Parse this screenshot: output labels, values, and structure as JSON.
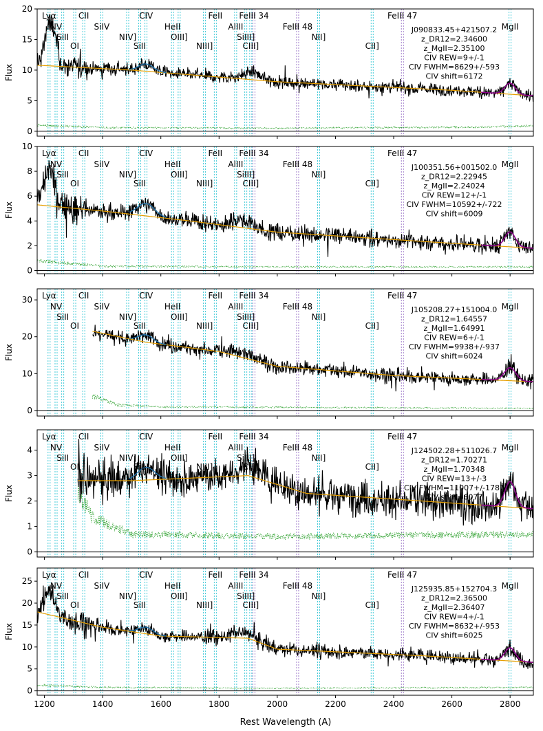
{
  "chart_data": {
    "type": "line",
    "xlabel": "Rest Wavelength (A)",
    "ylabel": "Flux",
    "xlim": [
      1175,
      2880
    ],
    "xticks": [
      1200,
      1400,
      1600,
      1800,
      2000,
      2200,
      2400,
      2600,
      2800
    ],
    "legend": "none",
    "grid": false,
    "colors": {
      "flux": "#000000",
      "error": "#2ca02c",
      "continuum": "#e69f00",
      "fit_total": "#8b008b",
      "fit_component": "#1f77b4",
      "line_marker": "#17becf",
      "feiii_marker": "#8a5fbf"
    },
    "line_markers": [
      {
        "label": "Lyα",
        "wave": 1216,
        "color": "cyan"
      },
      {
        "label": "NV",
        "wave": 1240,
        "color": "cyan"
      },
      {
        "label": "SiII",
        "wave": 1263,
        "color": "cyan"
      },
      {
        "label": "OI",
        "wave": 1304,
        "color": "cyan"
      },
      {
        "label": "CII",
        "wave": 1335,
        "color": "cyan"
      },
      {
        "label": "SiIV",
        "wave": 1397,
        "color": "cyan"
      },
      {
        "label": "NIV]",
        "wave": 1486,
        "color": "cyan"
      },
      {
        "label": "SiII",
        "wave": 1527,
        "color": "cyan"
      },
      {
        "label": "CIV",
        "wave": 1549,
        "color": "cyan"
      },
      {
        "label": "HeII",
        "wave": 1640,
        "color": "cyan"
      },
      {
        "label": "OIII]",
        "wave": 1663,
        "color": "cyan"
      },
      {
        "label": "NIII]",
        "wave": 1750,
        "color": "cyan"
      },
      {
        "label": "FeII",
        "wave": 1787,
        "color": "cyan"
      },
      {
        "label": "AlIII",
        "wave": 1857,
        "color": "cyan"
      },
      {
        "label": "SiIII]",
        "wave": 1892,
        "color": "cyan"
      },
      {
        "label": "CIII]",
        "wave": 1909,
        "color": "cyan"
      },
      {
        "label": "FeIII 34",
        "wave": 1920,
        "color": "purple"
      },
      {
        "label": "FeIII 48",
        "wave": 2070,
        "color": "purple"
      },
      {
        "label": "NII]",
        "wave": 2142,
        "color": "cyan"
      },
      {
        "label": "CII]",
        "wave": 2326,
        "color": "cyan"
      },
      {
        "label": "FeIII 47",
        "wave": 2430,
        "color": "purple"
      },
      {
        "label": "MgII",
        "wave": 2800,
        "color": "cyan"
      }
    ],
    "panels": [
      {
        "name": "J090833.45+421507.2",
        "ylim": [
          -0.8,
          20
        ],
        "yticks": [
          0,
          5,
          10,
          15,
          20
        ],
        "info": [
          "J090833.45+421507.2",
          "z_DR12=2.34600",
          "z_MgII=2.35100",
          "CIV REW=9+/-1",
          "CIV FWHM=8629+/-593",
          "CIV shift=6172"
        ],
        "blue_start": 1175,
        "continuum": {
          "anchors": [
            [
              1175,
              10.8
            ],
            [
              1500,
              10.0
            ],
            [
              2000,
              8.1
            ],
            [
              2600,
              6.7
            ],
            [
              2880,
              5.8
            ]
          ]
        },
        "emission": [
          [
            1216,
            7.0,
            15
          ],
          [
            1240,
            2.5,
            10
          ],
          [
            1549,
            1.2,
            25
          ],
          [
            1909,
            1.2,
            30
          ],
          [
            2800,
            1.8,
            18
          ]
        ],
        "noise": 0.5,
        "error_level": [
          [
            1175,
            1.0
          ],
          [
            1400,
            0.6
          ],
          [
            2000,
            0.5
          ],
          [
            2700,
            0.7
          ],
          [
            2880,
            0.9
          ]
        ]
      },
      {
        "name": "J100351.56+001502.0",
        "ylim": [
          -0.25,
          10
        ],
        "yticks": [
          0,
          2,
          4,
          6,
          8,
          10
        ],
        "info": [
          "J100351.56+001502.0",
          "z_DR12=2.22945",
          "z_MgII=2.24024",
          "CIV REW=12+/-1",
          "CIV FWHM=10592+/-722",
          "CIV shift=6009"
        ],
        "blue_start": 1175,
        "continuum": {
          "anchors": [
            [
              1175,
              5.3
            ],
            [
              1400,
              4.8
            ],
            [
              1700,
              4.0
            ],
            [
              2000,
              3.1
            ],
            [
              2600,
              2.2
            ],
            [
              2880,
              1.8
            ]
          ]
        },
        "emission": [
          [
            1216,
            3.0,
            18
          ],
          [
            1549,
            1.0,
            30
          ],
          [
            1880,
            0.6,
            35
          ],
          [
            2800,
            1.2,
            18
          ]
        ],
        "noise": 0.35,
        "error_level": [
          [
            1175,
            0.8
          ],
          [
            1400,
            0.35
          ],
          [
            2000,
            0.3
          ],
          [
            2880,
            0.3
          ]
        ]
      },
      {
        "name": "J105208.27+151004.0",
        "ylim": [
          -1.5,
          33
        ],
        "yticks": [
          0,
          10,
          20,
          30
        ],
        "info": [
          "J105208.27+151004.0",
          "z_DR12=1.64557",
          "z_MgII=1.64991",
          "CIV REW=6+/-1",
          "CIV FWHM=9938+/-937",
          "CIV shift=6024"
        ],
        "blue_start": 1365,
        "continuum": {
          "anchors": [
            [
              1365,
              21.5
            ],
            [
              1550,
              18.5
            ],
            [
              1800,
              16.0
            ],
            [
              2000,
              12.0
            ],
            [
              2400,
              9.5
            ],
            [
              2880,
              7.8
            ]
          ]
        },
        "emission": [
          [
            1549,
            2.0,
            25
          ],
          [
            1880,
            1.5,
            35
          ],
          [
            2800,
            3.5,
            20
          ]
        ],
        "noise": 1.0,
        "error_level": [
          [
            1365,
            4.0
          ],
          [
            1450,
            1.5
          ],
          [
            1600,
            1.0
          ],
          [
            2880,
            0.6
          ]
        ]
      },
      {
        "name": "J124502.28+511026.7",
        "ylim": [
          -0.2,
          4.8
        ],
        "yticks": [
          0,
          1,
          2,
          3,
          4
        ],
        "info": [
          "J124502.28+511026.7",
          "z_DR12=1.70271",
          "z_MgII=1.70348",
          "CIV REW=13+/-3",
          "CIV FWHM=11007+/-1787",
          "CIV shift=6077"
        ],
        "blue_start": 1315,
        "continuum": {
          "anchors": [
            [
              1315,
              2.8
            ],
            [
              1500,
              2.8
            ],
            [
              1900,
              3.0
            ],
            [
              2100,
              2.3
            ],
            [
              2500,
              2.0
            ],
            [
              2880,
              1.7
            ]
          ]
        },
        "emission": [
          [
            1549,
            0.5,
            30
          ],
          [
            1900,
            0.4,
            40
          ],
          [
            2800,
            1.0,
            18
          ]
        ],
        "noise": 0.35,
        "error_level": [
          [
            1315,
            2.5
          ],
          [
            1360,
            1.4
          ],
          [
            1500,
            0.7
          ],
          [
            2000,
            0.6
          ],
          [
            2880,
            0.7
          ]
        ]
      },
      {
        "name": "J125935.85+152704.3",
        "ylim": [
          -1.0,
          28
        ],
        "yticks": [
          0,
          5,
          10,
          15,
          20,
          25
        ],
        "info": [
          "J125935.85+152704.3",
          "z_DR12=2.36500",
          "z_MgII=2.36407",
          "CIV REW=4+/-1",
          "CIV FWHM=8632+/-953",
          "CIV shift=6025"
        ],
        "blue_start": 1175,
        "continuum": {
          "anchors": [
            [
              1175,
              18.0
            ],
            [
              1400,
              14.5
            ],
            [
              1600,
              12.5
            ],
            [
              1900,
              12.0
            ],
            [
              2000,
              9.5
            ],
            [
              2500,
              8.0
            ],
            [
              2880,
              6.5
            ]
          ]
        },
        "emission": [
          [
            1216,
            6.0,
            15
          ],
          [
            1549,
            1.5,
            25
          ],
          [
            1880,
            1.2,
            35
          ],
          [
            2800,
            3.0,
            18
          ]
        ],
        "noise": 0.8,
        "error_level": [
          [
            1175,
            1.3
          ],
          [
            1400,
            0.8
          ],
          [
            2000,
            0.6
          ],
          [
            2880,
            0.8
          ]
        ]
      }
    ]
  }
}
